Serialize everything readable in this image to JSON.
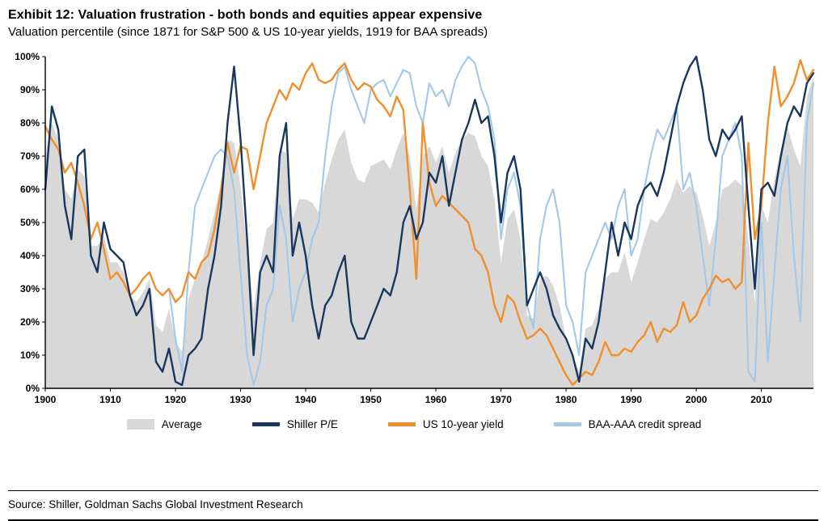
{
  "header": {
    "title": "Exhibit 12: Valuation frustration - both bonds and equities appear expensive",
    "subtitle": "Valuation percentile (since 1871 for S&P 500 & US 10-year yields, 1919 for BAA spreads)"
  },
  "footer": {
    "source": "Source: Shiller, Goldman Sachs Global Investment Research"
  },
  "chart_data": {
    "type": "line",
    "title": "Exhibit 12: Valuation frustration - both bonds and equities appear expensive",
    "xlabel": "",
    "ylabel": "",
    "ylim": [
      0,
      100
    ],
    "grid": false,
    "legend_position": "bottom",
    "ytick_suffix": "%",
    "yticks": [
      0,
      10,
      20,
      30,
      40,
      50,
      60,
      70,
      80,
      90,
      100
    ],
    "xticks": [
      1900,
      1910,
      1920,
      1930,
      1940,
      1950,
      1960,
      1970,
      1980,
      1990,
      2000,
      2010
    ],
    "x": [
      1900,
      1901,
      1902,
      1903,
      1904,
      1905,
      1906,
      1907,
      1908,
      1909,
      1910,
      1911,
      1912,
      1913,
      1914,
      1915,
      1916,
      1917,
      1918,
      1919,
      1920,
      1921,
      1922,
      1923,
      1924,
      1925,
      1926,
      1927,
      1928,
      1929,
      1930,
      1931,
      1932,
      1933,
      1934,
      1935,
      1936,
      1937,
      1938,
      1939,
      1940,
      1941,
      1942,
      1943,
      1944,
      1945,
      1946,
      1947,
      1948,
      1949,
      1950,
      1951,
      1952,
      1953,
      1954,
      1955,
      1956,
      1957,
      1958,
      1959,
      1960,
      1961,
      1962,
      1963,
      1964,
      1965,
      1966,
      1967,
      1968,
      1969,
      1970,
      1971,
      1972,
      1973,
      1974,
      1975,
      1976,
      1977,
      1978,
      1979,
      1980,
      1981,
      1982,
      1983,
      1984,
      1985,
      1986,
      1987,
      1988,
      1989,
      1990,
      1991,
      1992,
      1993,
      1994,
      1995,
      1996,
      1997,
      1998,
      1999,
      2000,
      2001,
      2002,
      2003,
      2004,
      2005,
      2006,
      2007,
      2008,
      2009,
      2010,
      2011,
      2012,
      2013,
      2014,
      2015,
      2016,
      2017,
      2018
    ],
    "series": [
      {
        "name": "Average",
        "type": "area",
        "color": "#D8D8D8",
        "values": [
          70,
          80,
          75,
          60,
          57,
          66,
          64,
          43,
          43,
          46,
          38,
          38,
          35,
          28,
          26,
          29,
          33,
          19,
          17,
          24,
          14,
          11,
          27,
          33,
          38,
          45,
          53,
          62,
          75,
          74,
          61,
          42,
          24,
          38,
          48,
          50,
          72,
          71,
          51,
          57,
          57,
          56,
          53,
          62,
          69,
          75,
          78,
          68,
          63,
          62,
          67,
          68,
          69,
          66,
          72,
          77,
          70,
          54,
          70,
          73,
          68,
          73,
          65,
          71,
          75,
          77,
          76,
          70,
          67,
          57,
          38,
          51,
          54,
          45,
          22,
          21,
          33,
          34,
          31,
          25,
          15,
          10,
          5,
          18,
          19,
          24,
          33,
          35,
          35,
          41,
          32,
          38,
          45,
          51,
          50,
          53,
          57,
          63,
          59,
          61,
          59,
          52,
          43,
          50,
          60,
          61,
          63,
          61,
          45,
          26,
          55,
          50,
          63,
          72,
          79,
          72,
          67,
          88,
          94
        ]
      },
      {
        "name": "Shiller P/E",
        "type": "line",
        "color": "#18375F",
        "stroke_width": 2.4,
        "values": [
          60,
          85,
          78,
          55,
          45,
          70,
          72,
          40,
          35,
          50,
          42,
          40,
          38,
          28,
          22,
          25,
          30,
          8,
          5,
          12,
          2,
          1,
          10,
          12,
          15,
          30,
          40,
          55,
          80,
          97,
          75,
          45,
          10,
          35,
          40,
          35,
          70,
          80,
          40,
          50,
          40,
          25,
          15,
          25,
          28,
          35,
          40,
          20,
          15,
          15,
          20,
          25,
          30,
          28,
          35,
          50,
          55,
          45,
          50,
          65,
          62,
          70,
          55,
          65,
          75,
          80,
          87,
          80,
          82,
          70,
          50,
          65,
          70,
          60,
          25,
          30,
          35,
          30,
          22,
          18,
          15,
          10,
          2,
          15,
          12,
          20,
          35,
          50,
          40,
          50,
          45,
          55,
          60,
          62,
          58,
          65,
          75,
          85,
          92,
          97,
          100,
          90,
          75,
          70,
          78,
          75,
          78,
          82,
          55,
          30,
          60,
          62,
          58,
          70,
          80,
          85,
          82,
          92,
          95
        ]
      },
      {
        "name": "US 10-year yield",
        "type": "line",
        "color": "#F18F2C",
        "stroke_width": 2.4,
        "values": [
          79,
          75,
          72,
          65,
          68,
          62,
          55,
          45,
          50,
          42,
          33,
          35,
          32,
          28,
          30,
          33,
          35,
          30,
          28,
          30,
          26,
          28,
          35,
          33,
          38,
          40,
          48,
          60,
          74,
          65,
          73,
          72,
          60,
          70,
          80,
          85,
          90,
          87,
          92,
          90,
          95,
          98,
          93,
          92,
          93,
          96,
          98,
          93,
          90,
          92,
          91,
          87,
          85,
          82,
          88,
          84,
          60,
          33,
          80,
          62,
          55,
          58,
          56,
          54,
          52,
          50,
          42,
          40,
          35,
          25,
          20,
          28,
          26,
          20,
          15,
          16,
          18,
          16,
          12,
          8,
          4,
          1,
          3,
          5,
          4,
          8,
          14,
          10,
          10,
          12,
          11,
          14,
          16,
          20,
          14,
          18,
          17,
          19,
          26,
          20,
          22,
          27,
          30,
          34,
          32,
          33,
          30,
          32,
          74,
          45,
          55,
          80,
          97,
          85,
          88,
          92,
          99,
          93,
          96
        ]
      },
      {
        "name": "BAA-AAA credit spread",
        "type": "line",
        "color": "#A3C8E8",
        "stroke_width": 2.1,
        "values": [
          null,
          null,
          null,
          null,
          null,
          null,
          null,
          null,
          null,
          null,
          null,
          null,
          null,
          null,
          null,
          null,
          null,
          null,
          null,
          30,
          15,
          5,
          35,
          55,
          60,
          65,
          70,
          72,
          70,
          60,
          35,
          10,
          1,
          8,
          25,
          30,
          55,
          45,
          20,
          30,
          35,
          45,
          50,
          70,
          85,
          95,
          97,
          90,
          85,
          80,
          90,
          92,
          93,
          88,
          92,
          96,
          95,
          85,
          80,
          92,
          88,
          90,
          85,
          93,
          97,
          100,
          98,
          90,
          85,
          75,
          45,
          60,
          65,
          55,
          25,
          18,
          45,
          55,
          60,
          50,
          25,
          20,
          10,
          35,
          40,
          45,
          50,
          45,
          55,
          60,
          40,
          45,
          60,
          70,
          78,
          75,
          80,
          85,
          60,
          65,
          55,
          40,
          25,
          45,
          70,
          75,
          80,
          70,
          5,
          2,
          50,
          8,
          35,
          60,
          70,
          40,
          20,
          80,
          92
        ]
      }
    ]
  }
}
